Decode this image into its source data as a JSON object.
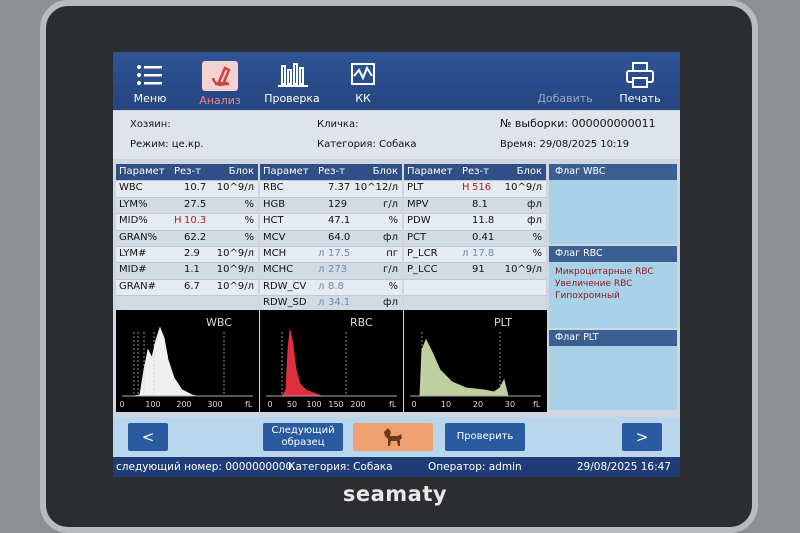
{
  "toolbar": {
    "items": [
      "Меню",
      "Анализ",
      "Проверка",
      "КК"
    ],
    "right": [
      "Добавить",
      "Печать"
    ]
  },
  "info": {
    "owner": "Хозяин:",
    "nickname": "Кличка:",
    "sample": "№ выборки: 000000000011",
    "mode": "Режим: це.кр.",
    "category": "Категория: Собака",
    "time": "Время: 29/08/2025 10:19"
  },
  "tables": [
    {
      "header": [
        "Парамет",
        "Рез-т",
        "Блок"
      ],
      "rows": [
        {
          "name": "WBC",
          "result": "10.7",
          "unit": "10^9/л"
        },
        {
          "name": "LYM%",
          "result": "27.5",
          "unit": "%"
        },
        {
          "name": "MID%",
          "flag": "H",
          "result": "10.3",
          "unit": "%"
        },
        {
          "name": "GRAN%",
          "result": "62.2",
          "unit": "%"
        },
        {
          "name": "LYM#",
          "result": "2.9",
          "unit": "10^9/л"
        },
        {
          "name": "MID#",
          "result": "1.1",
          "unit": "10^9/л"
        },
        {
          "name": "GRAN#",
          "result": "6.7",
          "unit": "10^9/л"
        }
      ]
    },
    {
      "header": [
        "Парамет",
        "Рез-т",
        "Блок"
      ],
      "rows": [
        {
          "name": "RBC",
          "result": "7.37",
          "unit": "10^12/л"
        },
        {
          "name": "HGB",
          "result": "129",
          "unit": "г/л"
        },
        {
          "name": "HCT",
          "result": "47.1",
          "unit": "%"
        },
        {
          "name": "MCV",
          "result": "64.0",
          "unit": "фл"
        },
        {
          "name": "MCH",
          "flag": "л",
          "result": "17.5",
          "unit": "пг"
        },
        {
          "name": "MCHC",
          "flag": "л",
          "result": "273",
          "unit": "г/л"
        },
        {
          "name": "RDW_CV",
          "flag": "л",
          "result": "8.8",
          "unit": "%"
        },
        {
          "name": "RDW_SD",
          "flag": "л",
          "result": "34.1",
          "unit": "фл"
        }
      ]
    },
    {
      "header": [
        "Парамет",
        "Рез-т",
        "Блок"
      ],
      "rows": [
        {
          "name": "PLT",
          "flag": "H",
          "result": "516",
          "unit": "10^9/л"
        },
        {
          "name": "MPV",
          "result": "8.1",
          "unit": "фл"
        },
        {
          "name": "PDW",
          "result": "11.8",
          "unit": "фл"
        },
        {
          "name": "PCT",
          "result": "0.41",
          "unit": "%"
        },
        {
          "name": "P_LCR",
          "flag": "л",
          "result": "17.8",
          "unit": "%"
        },
        {
          "name": "P_LCC",
          "result": "91",
          "unit": "10^9/л"
        }
      ]
    }
  ],
  "histograms": [
    {
      "title": "WBC",
      "ticks": [
        "0",
        "100",
        "200",
        "300"
      ],
      "unit": "fL"
    },
    {
      "title": "RBC",
      "ticks": [
        "0",
        "50",
        "100",
        "150",
        "200"
      ],
      "unit": "fL"
    },
    {
      "title": "PLT",
      "ticks": [
        "0",
        "10",
        "20",
        "30"
      ],
      "unit": "fL"
    }
  ],
  "flags": [
    {
      "title": "Флаг WBC"
    },
    {
      "title": "Флаг RBC",
      "items": [
        "Микроцитарные RBC",
        "Увеличение RBC",
        "Гипохромный"
      ]
    },
    {
      "title": "Флаг PLT"
    }
  ],
  "buttons": {
    "prev": "<",
    "next_sample": "Следующий образец",
    "verify": "Проверить",
    "next": ">"
  },
  "status": {
    "next_number": "следующий номер: 0000000000...",
    "category": "Категория: Собака",
    "operator": "Оператор: admin",
    "datetime": "29/08/2025 16:47"
  },
  "brand": "seamaty"
}
